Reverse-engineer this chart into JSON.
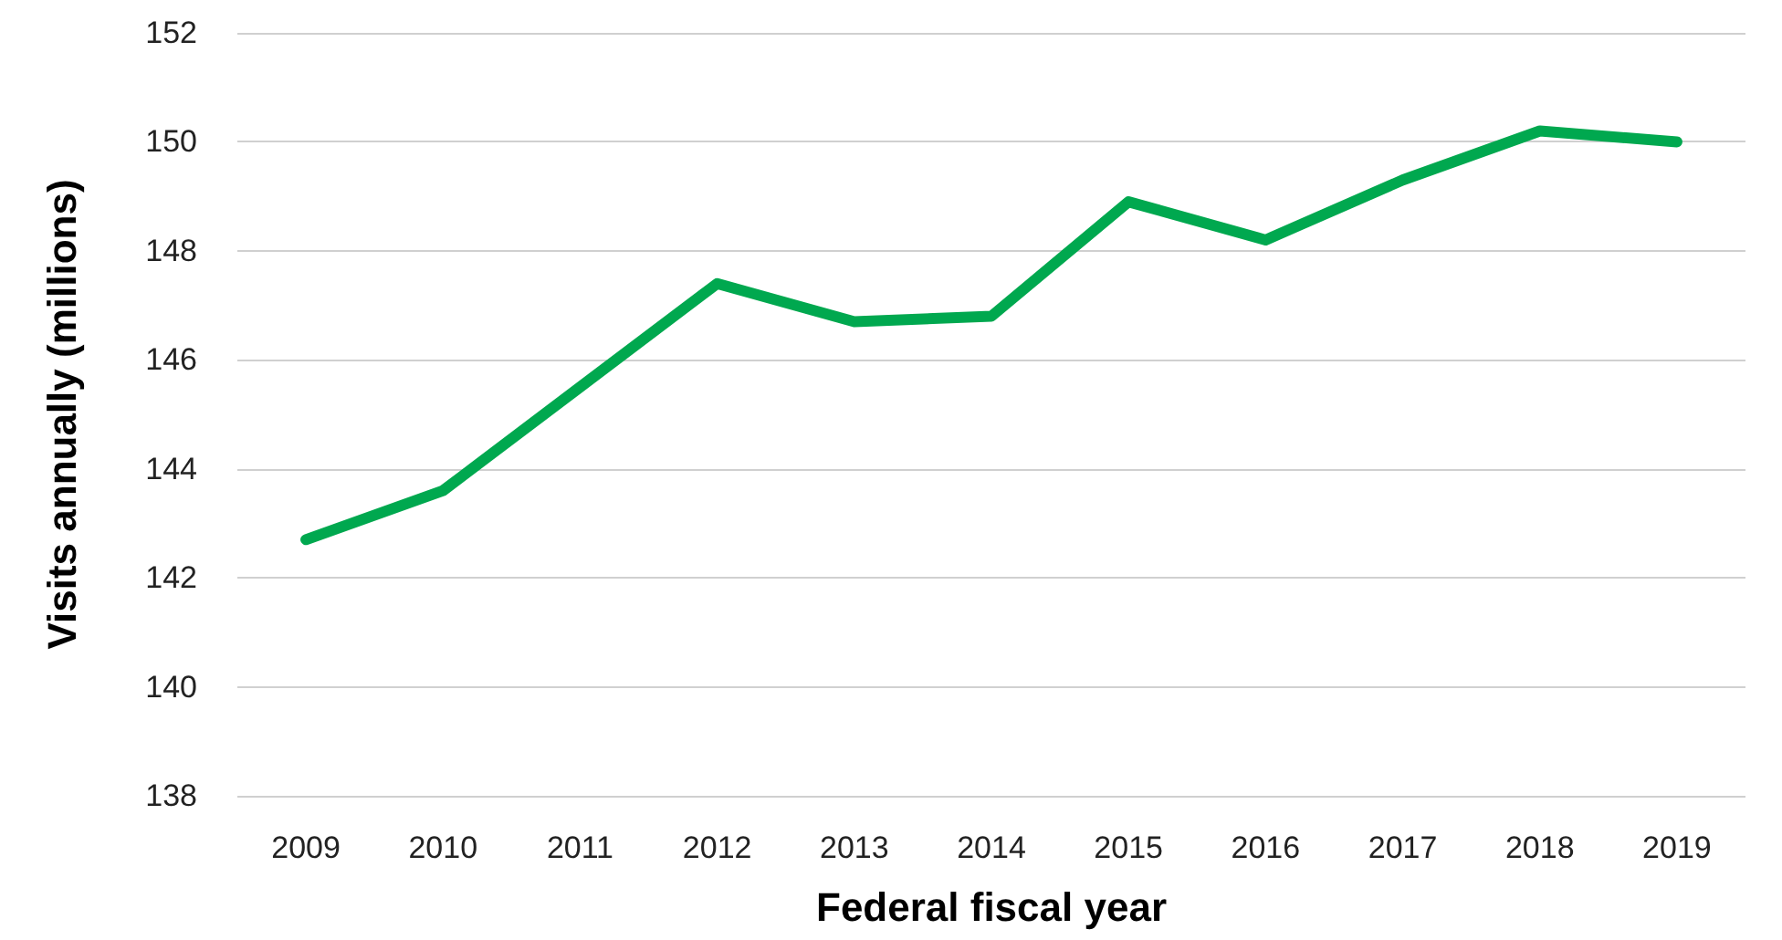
{
  "chart_data": {
    "type": "line",
    "xlabel": "Federal fiscal year",
    "ylabel": "Visits annually (millions)",
    "categories": [
      "2009",
      "2010",
      "2011",
      "2012",
      "2013",
      "2014",
      "2015",
      "2016",
      "2017",
      "2018",
      "2019"
    ],
    "series": [
      {
        "color": "#00a84f",
        "values": [
          142.7,
          143.6,
          145.5,
          147.4,
          146.7,
          146.8,
          148.9,
          148.2,
          149.3,
          150.2,
          150.0
        ]
      }
    ],
    "ylim": [
      138,
      152
    ],
    "yticks": [
      138,
      140,
      142,
      144,
      146,
      148,
      150,
      152
    ],
    "grid": "y",
    "marker": "none",
    "line_style": "solid"
  }
}
